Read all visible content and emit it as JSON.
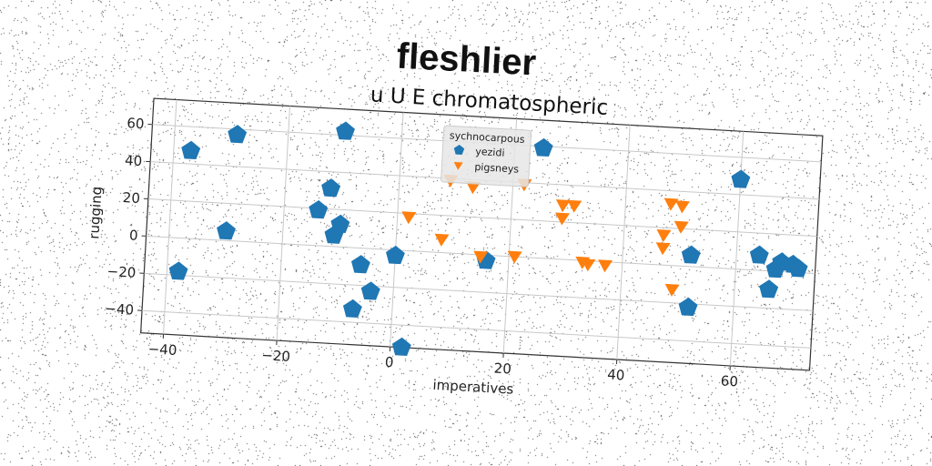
{
  "suptitle": "fleshlier",
  "chart_data": {
    "type": "scatter",
    "title": "u U E chromatospheric",
    "xlabel": "imperatives",
    "ylabel": "rugging",
    "xlim": [
      -44,
      74
    ],
    "ylim": [
      -52,
      74
    ],
    "xticks": [
      -40,
      -20,
      0,
      20,
      40,
      60
    ],
    "yticks": [
      -40,
      -20,
      0,
      20,
      40,
      60
    ],
    "xtick_labels": [
      "−40",
      "−20",
      "0",
      "20",
      "40",
      "60"
    ],
    "ytick_labels": [
      "−40",
      "−20",
      "0",
      "20",
      "40",
      "60"
    ],
    "grid": true,
    "legend": {
      "title": "sychnocarpous",
      "location": "upper center",
      "entries": [
        "yezidi",
        "pigsneys"
      ]
    },
    "series": [
      {
        "name": "yezidi",
        "marker": "pentagon",
        "color": "#1f77b4",
        "points": [
          [
            -37,
            47
          ],
          [
            -29,
            57
          ],
          [
            -10,
            62
          ],
          [
            -38,
            -18
          ],
          [
            -30,
            5
          ],
          [
            -12,
            31
          ],
          [
            -14,
            19
          ],
          [
            -10,
            12
          ],
          [
            -11,
            6
          ],
          [
            -6,
            -9
          ],
          [
            -4,
            -23
          ],
          [
            -7,
            -33
          ],
          [
            0,
            -3
          ],
          [
            2,
            -52
          ],
          [
            16,
            -3
          ],
          [
            25,
            59
          ],
          [
            60,
            48
          ],
          [
            52,
            6
          ],
          [
            52,
            -22
          ],
          [
            64,
            8
          ],
          [
            67,
            1
          ],
          [
            68,
            5
          ],
          [
            70,
            4
          ],
          [
            71,
            2
          ],
          [
            66,
            -10
          ]
        ]
      },
      {
        "name": "pigsneys",
        "marker": "triangle_down",
        "color": "#ff7f0e",
        "points": [
          [
            9,
            39
          ],
          [
            13,
            36
          ],
          [
            22,
            39
          ],
          [
            29,
            29
          ],
          [
            31,
            29
          ],
          [
            29,
            22
          ],
          [
            2,
            18
          ],
          [
            8,
            7
          ],
          [
            15,
            -1
          ],
          [
            21,
            0
          ],
          [
            33,
            -1
          ],
          [
            34,
            -2
          ],
          [
            37,
            -2
          ],
          [
            48,
            33
          ],
          [
            50,
            32
          ],
          [
            50,
            21
          ],
          [
            47,
            16
          ],
          [
            47,
            9
          ],
          [
            49,
            -13
          ]
        ]
      }
    ]
  }
}
